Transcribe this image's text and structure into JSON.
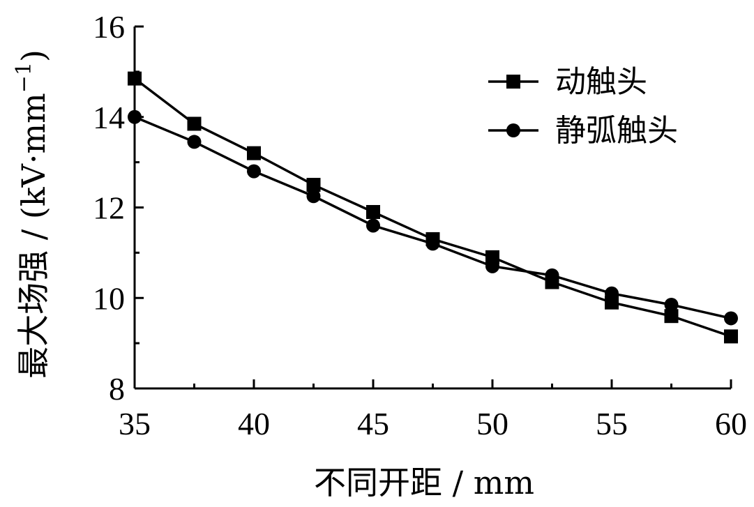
{
  "chart_data": {
    "type": "line",
    "title": "",
    "xlabel": "不同开距 / mm",
    "ylabel": "最大场强 / (kV·mm",
    "ylabel_superscript": "−1",
    "ylabel_suffix": ")",
    "xlim": [
      35,
      60
    ],
    "ylim": [
      8,
      16
    ],
    "xticks": [
      35,
      40,
      45,
      50,
      55,
      60
    ],
    "yticks": [
      8,
      10,
      12,
      14,
      16
    ],
    "x_minor_ticks": [
      37.5,
      42.5,
      47.5,
      52.5,
      57.5
    ],
    "y_minor_ticks": [
      9,
      11,
      13,
      15
    ],
    "grid": false,
    "legend_position": "top-right",
    "x": [
      35,
      37.5,
      40,
      42.5,
      45,
      47.5,
      50,
      52.5,
      55,
      57.5,
      60
    ],
    "series": [
      {
        "name": "动触头",
        "marker": "square",
        "values": [
          14.85,
          13.85,
          13.2,
          12.5,
          11.9,
          11.3,
          10.9,
          10.35,
          9.9,
          9.6,
          9.15
        ]
      },
      {
        "name": "静弧触头",
        "marker": "circle",
        "values": [
          14.0,
          13.45,
          12.8,
          12.25,
          11.6,
          11.2,
          10.7,
          10.5,
          10.1,
          9.85,
          9.55
        ]
      }
    ]
  }
}
